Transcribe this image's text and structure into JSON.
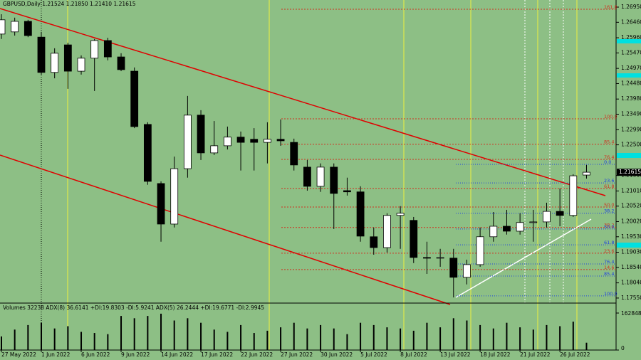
{
  "chart_data": {
    "type": "candlestick",
    "title": "GBPUSD,Daily  1.21524 1.21850 1.21410 1.21615",
    "categories": [
      "27 May 2022",
      null,
      null,
      "1 Jun 2022",
      null,
      null,
      "6 Jun 2022",
      null,
      null,
      "9 Jun 2022",
      null,
      null,
      "14 Jun 2022",
      null,
      null,
      "17 Jun 2022",
      null,
      null,
      "22 Jun 2022",
      null,
      null,
      "27 Jun 2022",
      null,
      null,
      "30 Jun 2022",
      null,
      null,
      "5 Jul 2022",
      null,
      null,
      "8 Jul 2022",
      null,
      null,
      "13 Jul 2022",
      null,
      null,
      "18 Jul 2022",
      null,
      null,
      "21 Jul 2022",
      null,
      null,
      "26 Jul 2022",
      null,
      null
    ],
    "open": [
      1.2608,
      1.2615,
      1.2649,
      1.2598,
      1.2484,
      1.2573,
      1.2488,
      1.253,
      1.2587,
      1.2534,
      1.2488,
      1.2316,
      1.2125,
      1.1994,
      1.2173,
      1.2346,
      1.2224,
      1.2247,
      1.2275,
      1.2268,
      1.2258,
      1.2268,
      1.2258,
      1.2178,
      1.2116,
      1.2178,
      1.2102,
      1.2098,
      1.1953,
      1.1918,
      1.2022,
      1.2006,
      1.1886,
      1.1884,
      1.1884,
      1.1822,
      1.1863,
      1.1953,
      1.1987,
      1.1971,
      1.1999,
      1.2001,
      1.2035,
      1.2022,
      1.21524
    ],
    "high": [
      1.2672,
      1.2661,
      1.2654,
      1.2615,
      1.2562,
      1.258,
      1.2539,
      1.2592,
      1.2596,
      1.2546,
      1.25,
      1.2323,
      1.2132,
      1.2212,
      1.2408,
      1.2362,
      1.2327,
      1.2309,
      1.2293,
      1.2304,
      1.2323,
      1.2332,
      1.227,
      1.2201,
      1.219,
      1.219,
      1.2144,
      1.2116,
      1.1983,
      1.2029,
      1.2052,
      1.2017,
      1.1937,
      1.1914,
      1.1914,
      1.1879,
      1.1983,
      1.2033,
      1.204,
      1.2029,
      1.204,
      1.2063,
      1.2109,
      1.2155,
      1.2185
    ],
    "low": [
      1.2592,
      1.2603,
      1.2598,
      1.2477,
      1.2465,
      1.2431,
      1.2477,
      1.2424,
      1.2523,
      1.2488,
      1.2304,
      1.2121,
      1.1937,
      1.1983,
      1.2144,
      1.2201,
      1.2217,
      1.2235,
      1.2167,
      1.2167,
      1.219,
      1.2247,
      1.2167,
      1.2102,
      1.2098,
      1.1978,
      1.2086,
      1.1937,
      1.1895,
      1.1902,
      1.1914,
      1.1868,
      1.1833,
      1.1856,
      1.1757,
      1.1799,
      1.1856,
      1.1937,
      1.196,
      1.196,
      1.1937,
      1.1983,
      1.1987,
      1.2017,
      1.2141
    ],
    "close": [
      1.2654,
      1.2649,
      1.2603,
      1.2484,
      1.2546,
      1.2488,
      1.253,
      1.2587,
      1.2534,
      1.2493,
      1.2309,
      1.2132,
      1.1994,
      1.2173,
      1.2346,
      1.2224,
      1.2247,
      1.2275,
      1.2258,
      1.2258,
      1.2268,
      1.2263,
      1.2185,
      1.2116,
      1.2178,
      1.2093,
      1.2098,
      1.1955,
      1.1918,
      1.2022,
      1.2029,
      1.1886,
      1.1884,
      1.1886,
      1.1822,
      1.1863,
      1.1953,
      1.1987,
      1.1971,
      1.1999,
      1.2001,
      1.2035,
      1.2022,
      1.215,
      1.21615
    ],
    "up_color": "#ffffff",
    "down_color": "#000000",
    "ylim": [
      1.1741,
      1.2718
    ],
    "yticks": [
      {
        "value": 1.2695,
        "label": "1.26950"
      },
      {
        "value": 1.2646,
        "label": "1.26460"
      },
      {
        "value": 1.2596,
        "label": "1.25960"
      },
      {
        "value": 1.2547,
        "label": "1.25470"
      },
      {
        "value": 1.2497,
        "label": "1.24970"
      },
      {
        "value": 1.2448,
        "label": "1.24480"
      },
      {
        "value": 1.2398,
        "label": "1.23980"
      },
      {
        "value": 1.2349,
        "label": "1.23490"
      },
      {
        "value": 1.2299,
        "label": "1.22990"
      },
      {
        "value": 1.225,
        "label": "1.22500"
      },
      {
        "value": 1.2151,
        "label": "1.21510"
      },
      {
        "value": 1.2101,
        "label": "1.21010"
      },
      {
        "value": 1.2052,
        "label": "1.20520"
      },
      {
        "value": 1.2002,
        "label": "1.20020"
      },
      {
        "value": 1.1953,
        "label": "1.19530"
      },
      {
        "value": 1.1903,
        "label": "1.19030"
      },
      {
        "value": 1.1854,
        "label": "1.18540"
      },
      {
        "value": 1.1804,
        "label": "1.18040"
      },
      {
        "value": 1.1755,
        "label": "1.17550"
      }
    ],
    "fib_red": [
      {
        "label": "161.8",
        "price": 1.2688
      },
      {
        "label": "100.0",
        "price": 1.2334
      },
      {
        "label": "85.4",
        "price": 1.2252
      },
      {
        "label": "76.4",
        "price": 1.2203
      },
      {
        "label": "61.8",
        "price": 1.2109
      },
      {
        "label": "50.0",
        "price": 1.2049
      },
      {
        "label": "38.2",
        "price": 1.1983
      },
      {
        "label": "23.6",
        "price": 1.19
      },
      {
        "label": "14.6",
        "price": 1.1847
      }
    ],
    "fib_blue": [
      {
        "label": "0.0",
        "price": 1.2187
      },
      {
        "label": "23.6",
        "price": 1.2127
      },
      {
        "label": "38.2",
        "price": 1.2029
      },
      {
        "label": "50.0",
        "price": 1.1978
      },
      {
        "label": "61.8",
        "price": 1.1927
      },
      {
        "label": "76.4",
        "price": 1.1865
      },
      {
        "label": "85.4",
        "price": 1.1826
      },
      {
        "label": "100.0",
        "price": 1.1762
      }
    ],
    "volume": {
      "label": "Volumes 32238  ADX(8) 36.6141 +DI:19.8303 -DI:5.9241  ADX(5) 26.2444 +DI:19.6771 -DI:2.9945",
      "values": [
        60000,
        90000,
        110000,
        120000,
        95000,
        105000,
        80000,
        75000,
        70000,
        150000,
        140000,
        150000,
        160000,
        130000,
        140000,
        120000,
        90000,
        80000,
        110000,
        75000,
        85000,
        100000,
        120000,
        95000,
        110000,
        95000,
        70000,
        120000,
        110000,
        100000,
        95000,
        85000,
        120000,
        100000,
        140000,
        130000,
        110000,
        95000,
        120000,
        100000,
        90000,
        110000,
        105000,
        125000,
        32238
      ],
      "ylim": [
        0,
        162848
      ],
      "yticks": [
        0,
        162848
      ]
    }
  }
}
